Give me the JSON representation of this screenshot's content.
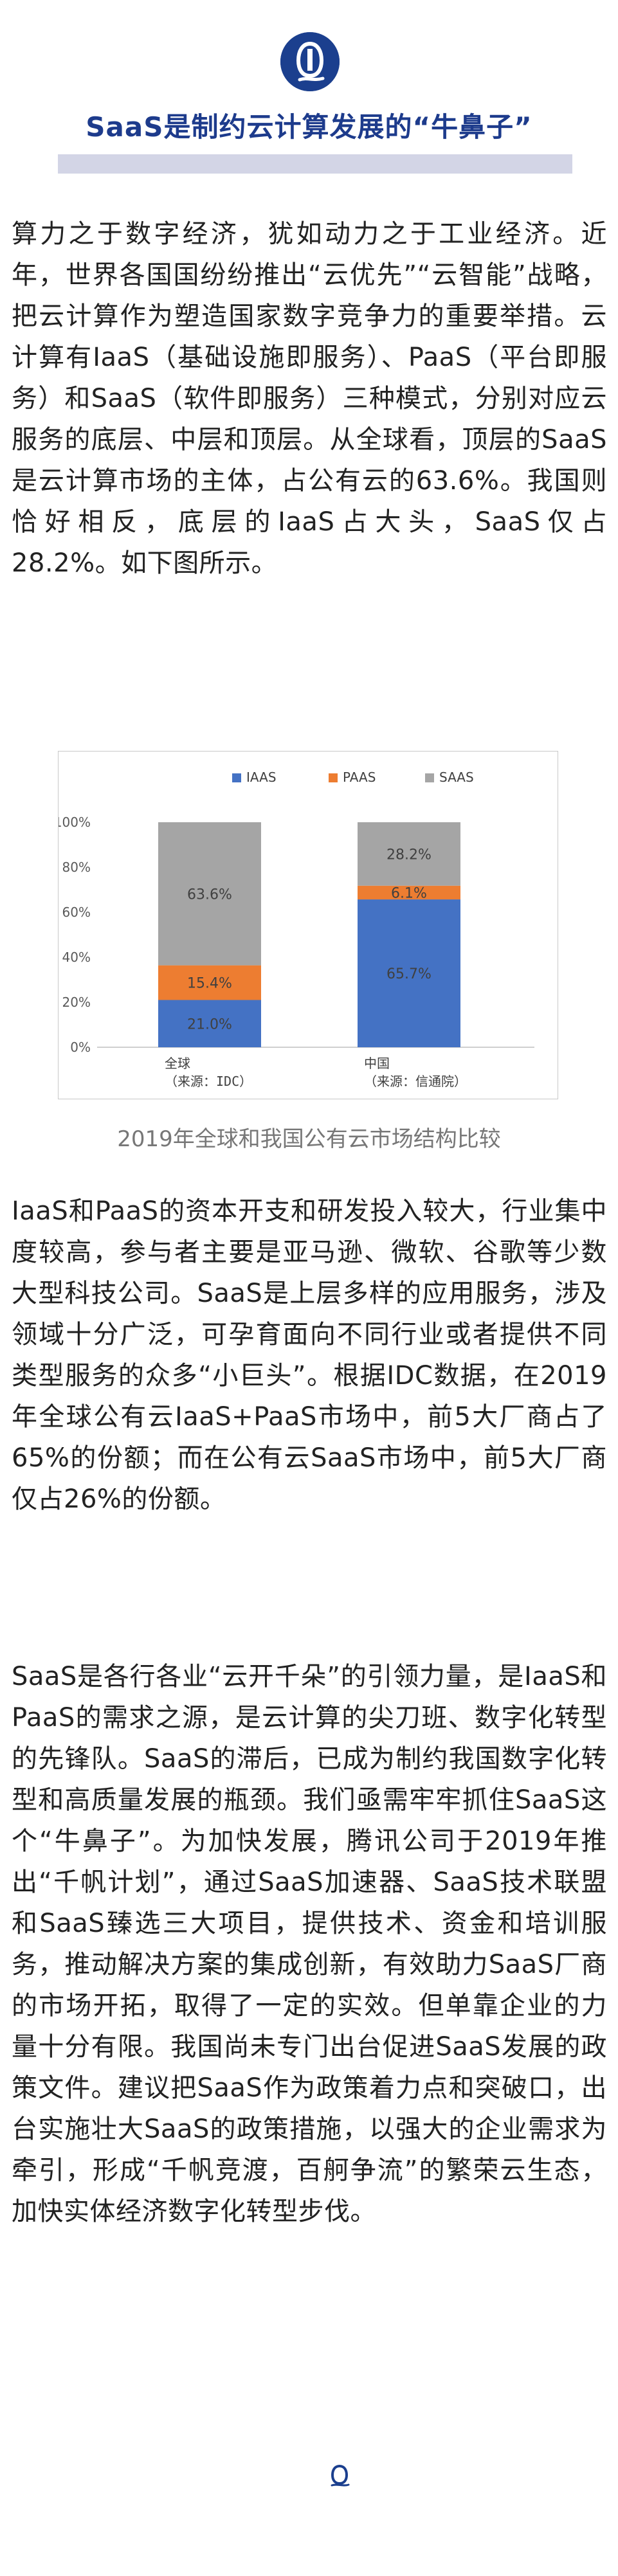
{
  "header": {
    "logo_icon": "brand-logo-icon",
    "title": "SaaS是制约云计算发展的“牛鼻子”"
  },
  "paragraphs": {
    "p1": "算力之于数字经济，犹如动力之于工业经济。近年，世界各国国纷纷推出“云优先”“云智能”战略，把云计算作为塑造国家数字竞争力的重要举措。云计算有IaaS（基础设施即服务）、PaaS（平台即服务）和SaaS（软件即服务）三种模式，分别对应云服务的底层、中层和顶层。从全球看，顶层的SaaS是云计算市场的主体，占公有云的63.6%。我国则恰好相反，底层的IaaS占大头，SaaS仅占28.2%。如下图所示。",
    "p2": "IaaS和PaaS的资本开支和研发投入较大，行业集中度较高，参与者主要是亚马逊、微软、谷歌等少数大型科技公司。SaaS是上层多样的应用服务，涉及领域十分广泛，可孕育面向不同行业或者提供不同类型服务的众多“小巨头”。根据IDC数据，在2019年全球公有云IaaS+PaaS市场中，前5大厂商占了65%的份额；而在公有云SaaS市场中，前5大厂商仅占26%的份额。",
    "p3": "SaaS是各行各业“云开千朵”的引领力量，是IaaS和PaaS的需求之源，是云计算的尖刀班、数字化转型的先锋队。SaaS的滞后，已成为制约我国数字化转型和高质量发展的瓶颈。我们亟需牢牢抓住SaaS这个“牛鼻子”。为加快发展，腾讯公司于2019年推出“千帆计划”，通过SaaS加速器、SaaS技术联盟和SaaS臻选三大项目，提供技术、资金和培训服务，推动解决方案的集成创新，有效助力SaaS厂商的市场开拓，取得了一定的实效。但单靠企业的力量十分有限。我国尚未专门出台促进SaaS发展的政策文件。建议把SaaS作为政策着力点和突破口，出台实施壮大SaaS的政策措施，以强大的企业需求为牵引，形成“千帆竞渡，百舸争流”的繁荣云生态，加快实体经济数字化转型步伐。"
  },
  "caption": "2019年全球和我国公有云市场结构比较",
  "end_icon": "brand-end-mark-icon",
  "watermark": "",
  "chart_data": {
    "type": "bar",
    "stacked": true,
    "percent": true,
    "categories": [
      "全球",
      "中国"
    ],
    "category_sublabels": [
      "（来源：IDC）",
      "（来源：信通院）"
    ],
    "series": [
      {
        "name": "IAAS",
        "color": "#4472c4",
        "values": [
          21.0,
          65.7
        ],
        "labels": [
          "21.0%",
          "65.7%"
        ]
      },
      {
        "name": "PAAS",
        "color": "#ed7d31",
        "values": [
          15.4,
          6.1
        ],
        "labels": [
          "15.4%",
          "6.1%"
        ]
      },
      {
        "name": "SAAS",
        "color": "#a5a5a5",
        "values": [
          63.6,
          28.2
        ],
        "labels": [
          "63.6%",
          "28.2%"
        ]
      }
    ],
    "yticks": [
      "0%",
      "20%",
      "40%",
      "60%",
      "80%",
      "100%"
    ],
    "ylim": [
      0,
      100
    ],
    "legend_position": "top",
    "grid": false
  }
}
